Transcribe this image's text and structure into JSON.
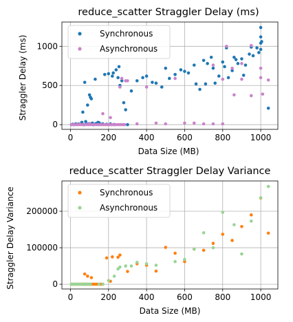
{
  "chart_data": [
    {
      "type": "scatter",
      "title": "reduce_scatter Straggler Delay (ms)",
      "xlabel": "Data Size (MB)",
      "ylabel": "Straggler Delay (ms)",
      "xlim": [
        -45,
        1090
      ],
      "ylim": [
        -60,
        1310
      ],
      "xticks": [
        0,
        200,
        400,
        600,
        800,
        1000
      ],
      "yticks": [
        0,
        500,
        1000
      ],
      "grid": true,
      "legend": "top-left",
      "series": [
        {
          "name": "Synchronous",
          "color": "#1f77b4",
          "points": [
            [
              5,
              0
            ],
            [
              12,
              5
            ],
            [
              20,
              2
            ],
            [
              28,
              10
            ],
            [
              35,
              3
            ],
            [
              42,
              8
            ],
            [
              50,
              4
            ],
            [
              55,
              15
            ],
            [
              60,
              30
            ],
            [
              65,
              160
            ],
            [
              70,
              0
            ],
            [
              75,
              540
            ],
            [
              80,
              40
            ],
            [
              85,
              5
            ],
            [
              90,
              250
            ],
            [
              95,
              10
            ],
            [
              100,
              380
            ],
            [
              105,
              350
            ],
            [
              110,
              330
            ],
            [
              115,
              20
            ],
            [
              120,
              0
            ],
            [
              125,
              5
            ],
            [
              130,
              580
            ],
            [
              135,
              15
            ],
            [
              140,
              10
            ],
            [
              145,
              30
            ],
            [
              150,
              25
            ],
            [
              155,
              3
            ],
            [
              160,
              5
            ],
            [
              170,
              10
            ],
            [
              180,
              640
            ],
            [
              190,
              5
            ],
            [
              200,
              650
            ],
            [
              210,
              10
            ],
            [
              220,
              620
            ],
            [
              225,
              660
            ],
            [
              230,
              2
            ],
            [
              240,
              700
            ],
            [
              250,
              600
            ],
            [
              255,
              740
            ],
            [
              260,
              500
            ],
            [
              270,
              560
            ],
            [
              280,
              280
            ],
            [
              290,
              190
            ],
            [
              300,
              0
            ],
            [
              320,
              430
            ],
            [
              350,
              560
            ],
            [
              380,
              600
            ],
            [
              400,
              620
            ],
            [
              430,
              540
            ],
            [
              450,
              530
            ],
            [
              480,
              480
            ],
            [
              500,
              720
            ],
            [
              520,
              590
            ],
            [
              550,
              640
            ],
            [
              580,
              700
            ],
            [
              600,
              680
            ],
            [
              620,
              660
            ],
            [
              650,
              760
            ],
            [
              660,
              520
            ],
            [
              680,
              450
            ],
            [
              700,
              820
            ],
            [
              710,
              520
            ],
            [
              720,
              780
            ],
            [
              740,
              860
            ],
            [
              750,
              720
            ],
            [
              760,
              530
            ],
            [
              780,
              620
            ],
            [
              800,
              800
            ],
            [
              810,
              740
            ],
            [
              820,
              980
            ],
            [
              830,
              600
            ],
            [
              850,
              690
            ],
            [
              860,
              860
            ],
            [
              870,
              830
            ],
            [
              880,
              780
            ],
            [
              900,
              840
            ],
            [
              910,
              630
            ],
            [
              920,
              760
            ],
            [
              940,
              900
            ],
            [
              950,
              990
            ],
            [
              960,
              880
            ],
            [
              980,
              980
            ],
            [
              990,
              920
            ],
            [
              1000,
              1040
            ],
            [
              1000,
              960
            ],
            [
              1000,
              1120
            ],
            [
              1000,
              1240
            ],
            [
              1005,
              1060
            ],
            [
              1040,
              210
            ]
          ]
        },
        {
          "name": "Asynchronous",
          "color": "#c983c9",
          "points": [
            [
              5,
              0
            ],
            [
              15,
              0
            ],
            [
              25,
              0
            ],
            [
              35,
              0
            ],
            [
              45,
              0
            ],
            [
              55,
              0
            ],
            [
              65,
              0
            ],
            [
              75,
              0
            ],
            [
              85,
              0
            ],
            [
              95,
              0
            ],
            [
              105,
              0
            ],
            [
              115,
              0
            ],
            [
              125,
              0
            ],
            [
              135,
              0
            ],
            [
              145,
              0
            ],
            [
              155,
              0
            ],
            [
              165,
              0
            ],
            [
              175,
              0
            ],
            [
              185,
              0
            ],
            [
              195,
              0
            ],
            [
              205,
              0
            ],
            [
              215,
              0
            ],
            [
              225,
              0
            ],
            [
              235,
              0
            ],
            [
              245,
              0
            ],
            [
              255,
              0
            ],
            [
              265,
              0
            ],
            [
              275,
              0
            ],
            [
              285,
              0
            ],
            [
              50,
              10
            ],
            [
              100,
              15
            ],
            [
              170,
              140
            ],
            [
              210,
              90
            ],
            [
              260,
              480
            ],
            [
              270,
              590
            ],
            [
              290,
              560
            ],
            [
              300,
              560
            ],
            [
              350,
              10
            ],
            [
              400,
              480
            ],
            [
              450,
              20
            ],
            [
              500,
              10
            ],
            [
              550,
              590
            ],
            [
              600,
              20
            ],
            [
              650,
              20
            ],
            [
              700,
              10
            ],
            [
              750,
              760
            ],
            [
              800,
              580
            ],
            [
              820,
              1000
            ],
            [
              850,
              720
            ],
            [
              900,
              580
            ],
            [
              950,
              1010
            ],
            [
              1000,
              720
            ],
            [
              1000,
              600
            ],
            [
              1010,
              390
            ],
            [
              1040,
              570
            ],
            [
              950,
              370
            ],
            [
              900,
              780
            ],
            [
              860,
              380
            ],
            [
              800,
              10
            ],
            [
              750,
              10
            ]
          ]
        }
      ]
    },
    {
      "type": "scatter",
      "title": "reduce_scatter Straggler Delay Variance",
      "xlabel": "Data Size (MB)",
      "ylabel": "Straggler Delay Variance",
      "xlim": [
        -45,
        1090
      ],
      "ylim": [
        -13000,
        283000
      ],
      "xticks": [
        0,
        200,
        400,
        600,
        800,
        1000
      ],
      "yticks": [
        0,
        100000,
        200000
      ],
      "grid": true,
      "legend": "top-left",
      "series": [
        {
          "name": "Synchronous",
          "color": "#ff7f0e",
          "points": [
            [
              5,
              0
            ],
            [
              15,
              0
            ],
            [
              25,
              0
            ],
            [
              35,
              0
            ],
            [
              45,
              0
            ],
            [
              55,
              0
            ],
            [
              65,
              0
            ],
            [
              70,
              0
            ],
            [
              80,
              0
            ],
            [
              90,
              0
            ],
            [
              100,
              0
            ],
            [
              110,
              0
            ],
            [
              120,
              0
            ],
            [
              130,
              0
            ],
            [
              140,
              0
            ],
            [
              150,
              0
            ],
            [
              160,
              0
            ],
            [
              170,
              0
            ],
            [
              75,
              28000
            ],
            [
              90,
              22000
            ],
            [
              110,
              18000
            ],
            [
              190,
              72000
            ],
            [
              210,
              8000
            ],
            [
              220,
              75000
            ],
            [
              250,
              74000
            ],
            [
              260,
              80000
            ],
            [
              300,
              35000
            ],
            [
              350,
              56000
            ],
            [
              400,
              52000
            ],
            [
              450,
              36000
            ],
            [
              500,
              101000
            ],
            [
              550,
              85000
            ],
            [
              600,
              62000
            ],
            [
              650,
              96000
            ],
            [
              700,
              93000
            ],
            [
              750,
              112000
            ],
            [
              800,
              137000
            ],
            [
              850,
              120000
            ],
            [
              900,
              158000
            ],
            [
              950,
              190000
            ],
            [
              1000,
              236000
            ],
            [
              1040,
              140000
            ]
          ]
        },
        {
          "name": "Asynchronous",
          "color": "#98d496",
          "points": [
            [
              5,
              0
            ],
            [
              15,
              0
            ],
            [
              25,
              0
            ],
            [
              35,
              0
            ],
            [
              45,
              0
            ],
            [
              55,
              0
            ],
            [
              65,
              0
            ],
            [
              75,
              0
            ],
            [
              85,
              0
            ],
            [
              95,
              0
            ],
            [
              105,
              0
            ],
            [
              150,
              0
            ],
            [
              170,
              0
            ],
            [
              200,
              10000
            ],
            [
              230,
              22000
            ],
            [
              250,
              42000
            ],
            [
              260,
              47000
            ],
            [
              290,
              50000
            ],
            [
              320,
              50000
            ],
            [
              350,
              60000
            ],
            [
              400,
              56000
            ],
            [
              450,
              52000
            ],
            [
              550,
              62000
            ],
            [
              600,
              68000
            ],
            [
              650,
              96000
            ],
            [
              700,
              141000
            ],
            [
              750,
              100000
            ],
            [
              800,
              197000
            ],
            [
              860,
              163000
            ],
            [
              900,
              83000
            ],
            [
              950,
              173000
            ],
            [
              1000,
              237000
            ],
            [
              1040,
              268000
            ]
          ]
        }
      ]
    }
  ]
}
